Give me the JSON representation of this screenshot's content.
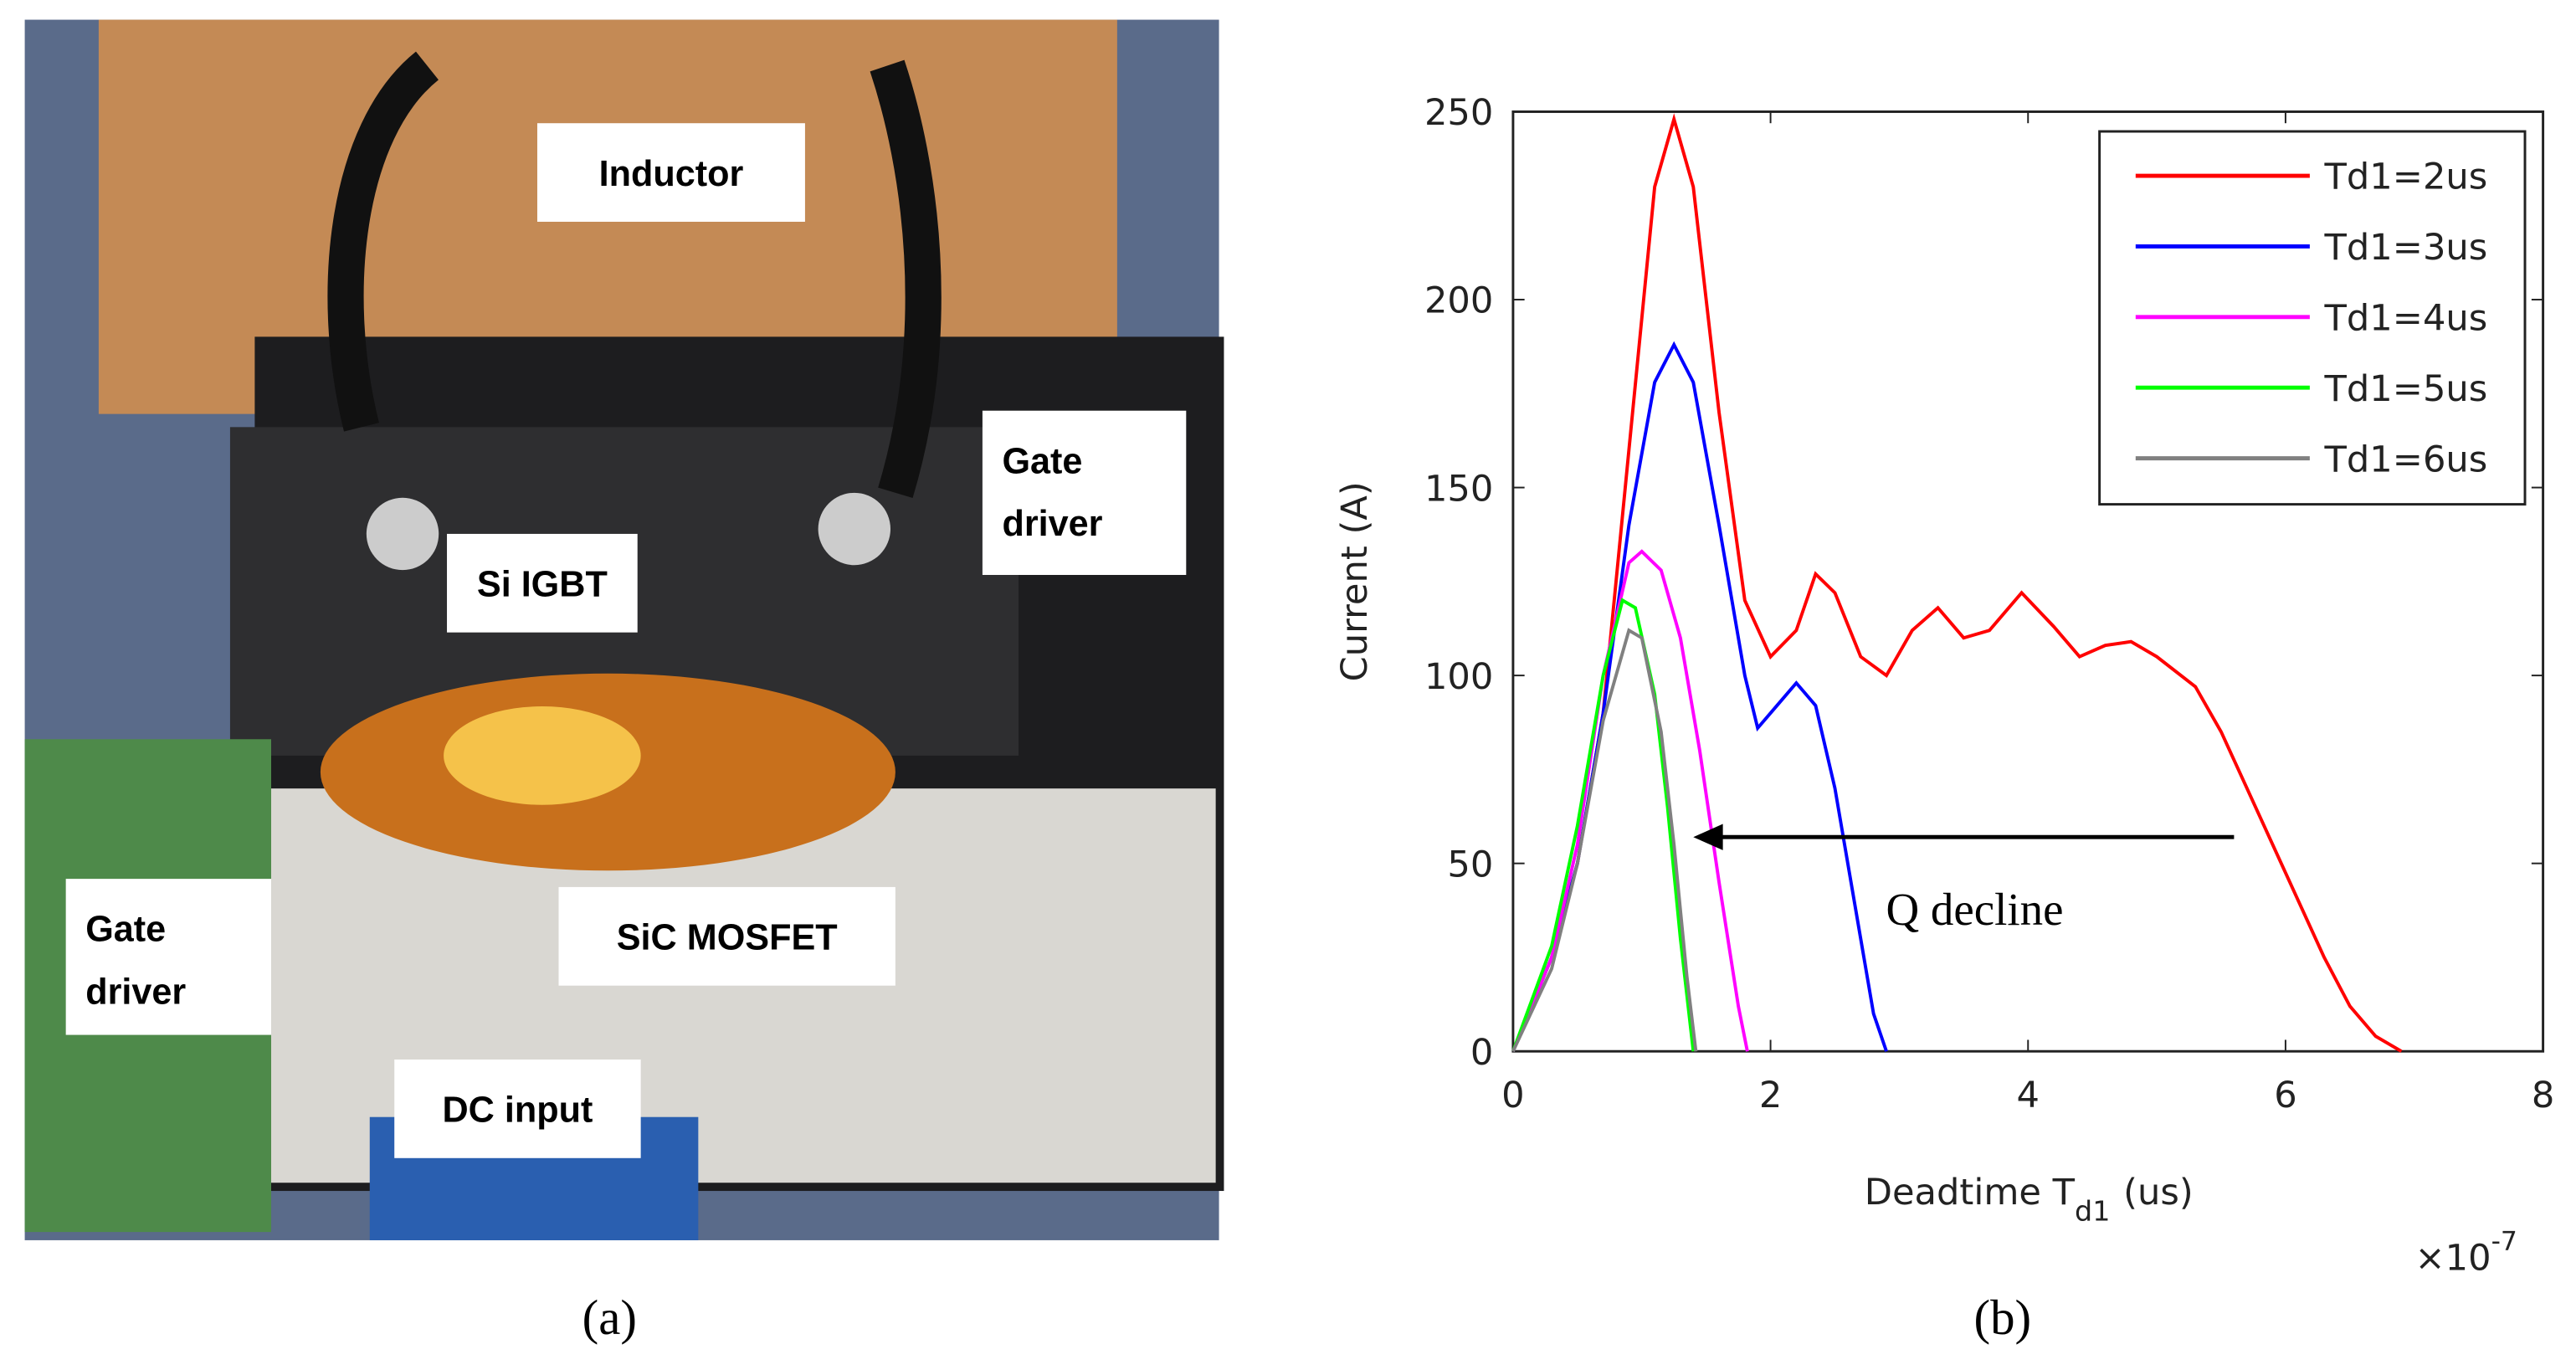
{
  "panel_a": {
    "caption": "(a)",
    "labels": {
      "inductor": "Inductor",
      "gate_driver_top": [
        "Gate",
        "driver"
      ],
      "si_igbt": "Si IGBT",
      "sic_mosfet": "SiC MOSFET",
      "gate_driver_left": [
        "Gate",
        "driver"
      ],
      "dc_input": "DC input"
    }
  },
  "chart_data": {
    "type": "line",
    "caption": "(b)",
    "ylabel": "Current (A)",
    "xlabel_parts": [
      "Deadtime T",
      "d1",
      "(us)"
    ],
    "x_multiplier": "×10",
    "x_multiplier_exp": "-7",
    "xlim": [
      0,
      8
    ],
    "xticks": [
      0,
      2,
      4,
      6,
      8
    ],
    "ylim": [
      0,
      250
    ],
    "yticks": [
      0,
      50,
      100,
      150,
      200,
      250
    ],
    "legend": "upper right",
    "annotation": {
      "text": "Q  decline",
      "x_from": 5.6,
      "x_to": 1.4,
      "y": 57
    },
    "series": [
      {
        "name": "Td1=2us",
        "color": "#ff0000",
        "x": [
          0,
          0.3,
          0.5,
          0.7,
          0.9,
          1.1,
          1.25,
          1.4,
          1.6,
          1.8,
          2.0,
          2.2,
          2.35,
          2.5,
          2.7,
          2.9,
          3.1,
          3.3,
          3.5,
          3.7,
          3.95,
          4.2,
          4.4,
          4.6,
          4.8,
          5.0,
          5.3,
          5.5,
          5.7,
          5.9,
          6.1,
          6.3,
          6.5,
          6.7,
          6.9
        ],
        "values": [
          0,
          25,
          50,
          90,
          160,
          230,
          248,
          230,
          170,
          120,
          105,
          112,
          127,
          122,
          105,
          100,
          112,
          118,
          110,
          112,
          122,
          113,
          105,
          108,
          109,
          105,
          97,
          85,
          70,
          55,
          40,
          25,
          12,
          4,
          0
        ]
      },
      {
        "name": "Td1=3us",
        "color": "#0000ff",
        "x": [
          0,
          0.3,
          0.5,
          0.7,
          0.9,
          1.1,
          1.25,
          1.4,
          1.6,
          1.8,
          1.9,
          2.05,
          2.2,
          2.35,
          2.5,
          2.6,
          2.7,
          2.8,
          2.9
        ],
        "values": [
          0,
          25,
          50,
          90,
          140,
          178,
          188,
          178,
          140,
          100,
          86,
          92,
          98,
          92,
          70,
          50,
          30,
          10,
          0
        ]
      },
      {
        "name": "Td1=4us",
        "color": "#ff00ff",
        "x": [
          0,
          0.3,
          0.5,
          0.7,
          0.9,
          1.0,
          1.15,
          1.3,
          1.45,
          1.6,
          1.75,
          1.82
        ],
        "values": [
          0,
          25,
          55,
          100,
          130,
          133,
          128,
          110,
          80,
          45,
          12,
          0
        ]
      },
      {
        "name": "Td1=5us",
        "color": "#00ff00",
        "x": [
          0,
          0.3,
          0.5,
          0.7,
          0.85,
          0.95,
          1.1,
          1.2,
          1.3,
          1.4
        ],
        "values": [
          0,
          28,
          60,
          100,
          120,
          118,
          95,
          65,
          30,
          0
        ]
      },
      {
        "name": "Td1=6us",
        "color": "#808080",
        "x": [
          0,
          0.3,
          0.5,
          0.7,
          0.9,
          1.0,
          1.15,
          1.25,
          1.35,
          1.42
        ],
        "values": [
          0,
          22,
          50,
          88,
          112,
          110,
          85,
          55,
          20,
          0
        ]
      }
    ]
  }
}
